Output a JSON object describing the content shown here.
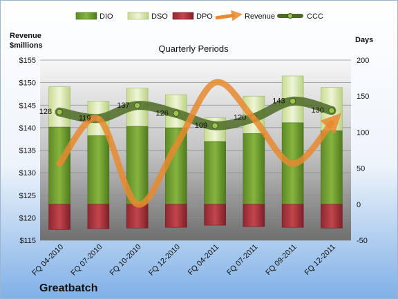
{
  "chart_data": {
    "type": "bar",
    "title": "Quarterly Periods",
    "company": "Greatbatch",
    "categories": [
      "FQ 04-2010",
      "FQ 07-2010",
      "FQ 10-2010",
      "FQ 12-2010",
      "FQ 04-2011",
      "FQ 07-2011",
      "FQ 09-2011",
      "FQ 12-2011"
    ],
    "left_axis": {
      "label_line1": "Revenue",
      "label_line2": "$millions",
      "range": [
        115,
        155
      ],
      "ticks": [
        "$115",
        "$120",
        "$125",
        "$130",
        "$135",
        "$140",
        "$145",
        "$150",
        "$155"
      ]
    },
    "right_axis": {
      "label": "Days",
      "range": [
        -50,
        200
      ],
      "ticks": [
        "-50",
        "0",
        "50",
        "100",
        "150",
        "200"
      ]
    },
    "series": [
      {
        "name": "DIO",
        "axis": "right",
        "kind": "stacked-bar",
        "values": [
          107,
          95,
          108,
          106,
          87,
          98,
          113,
          102
        ],
        "color": "#6f9a30"
      },
      {
        "name": "DSO",
        "axis": "right",
        "kind": "stacked-bar",
        "values": [
          56,
          48,
          53,
          46,
          33,
          52,
          65,
          60
        ],
        "color": "#d6e6a8"
      },
      {
        "name": "DPO",
        "axis": "right",
        "kind": "negative-bar",
        "values": [
          35,
          34,
          33,
          32,
          29,
          31,
          32,
          33
        ],
        "color": "#a8333a"
      },
      {
        "name": "Revenue",
        "axis": "left",
        "kind": "line",
        "values": [
          132,
          142,
          123,
          136,
          150,
          142,
          132,
          141
        ],
        "color": "#e8892f"
      },
      {
        "name": "CCC",
        "axis": "right",
        "kind": "line",
        "values": [
          128,
          119,
          137,
          126,
          109,
          120,
          143,
          130
        ],
        "color": "#5e7f33"
      }
    ],
    "ccc_labels": [
      "128",
      "119",
      "137",
      "126",
      "109",
      "120",
      "143",
      "130"
    ],
    "grid": true,
    "legend_position": "top"
  }
}
